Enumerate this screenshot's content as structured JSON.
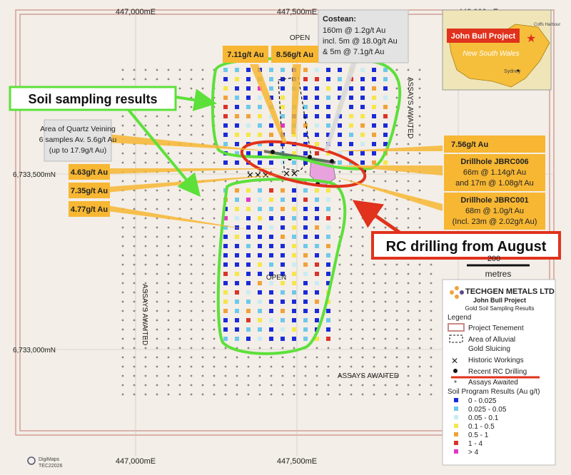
{
  "grid_labels": {
    "e1_top": "447,000mE",
    "e2_top": "447,500mE",
    "e3_top": "448,000mE",
    "e1_bottom": "447,000mE",
    "e2_bottom": "447,500mE",
    "n1": "6,733,500mN",
    "n2": "6,733,000mN"
  },
  "map_text": {
    "open_north": "OPEN",
    "open_south": "OPEN",
    "assays_awaited_east": "ASSAYS AWAITED",
    "assays_awaited_west": "ASSAYS AWAITED",
    "assays_awaited_south": "ASSAYS AWAITED"
  },
  "callouts": {
    "costean_title": "Costean:",
    "costean_line1": "160m @ 1.2g/t Au",
    "costean_line2": "incl. 5m @ 18.0g/t Au",
    "costean_line3": "& 5m @ 7.1g/t Au",
    "v711": "7.11g/t Au",
    "v856": "8.56g/t Au",
    "v756": "7.56g/t Au",
    "v463": "4.63g/t Au",
    "v735": "7.35g/t Au",
    "v477": "4.77g/t Au",
    "qv_title": "Area of Quartz Veining",
    "qv_line1": "6 samples Av. 5.6g/t Au",
    "qv_line2": "(up to 17.9g/t Au)",
    "dh6_title": "Drillhole JBRC006",
    "dh6_line1": "66m @ 1.14g/t Au",
    "dh6_line2": "and 17m @ 1.08g/t Au",
    "dh1_title": "Drillhole JBRC001",
    "dh1_line1": "68m @ 1.0g/t Au",
    "dh1_line2": "(Incl. 23m @ 2.02g/t Au)"
  },
  "annotations": {
    "soil": "Soil sampling results",
    "rc": "RC drilling from August"
  },
  "inset": {
    "project": "John Bull Project",
    "state": "New South Wales",
    "city1": "Sydney",
    "city2": "Coffs Harbour"
  },
  "scale": {
    "value": "200",
    "unit": "metres"
  },
  "legend": {
    "company": "TECHGEN METALS LTD",
    "project": "John Bull Project",
    "subtitle": "Gold Soil Sampling Results",
    "heading": "Legend",
    "tenement": "Project Tenement",
    "alluvial1": "Area of Alluvial",
    "alluvial2": "Gold Sluicing",
    "workings": "Historic Workings",
    "rc": "Recent RC Drilling",
    "assays": "Assays Awaited",
    "results_heading": "Soil Program Results (Au g/t)",
    "classes": [
      {
        "label": "0 - 0.025",
        "color": "#1a2bd8"
      },
      {
        "label": "0.025 - 0.05",
        "color": "#6ec9ea"
      },
      {
        "label": "0.05 - 0.1",
        "color": "#c9ecf4"
      },
      {
        "label": "0.1 - 0.5",
        "color": "#f5e64a"
      },
      {
        "label": "0.5 - 1",
        "color": "#f0a23a"
      },
      {
        "label": "1 - 4",
        "color": "#d9342b"
      },
      {
        "label": "> 4",
        "color": "#e236c8"
      }
    ]
  },
  "footer": {
    "brand": "DigiMaps",
    "code": "TEC22026"
  },
  "colors": {
    "callout_orange": "#f7b733",
    "green_outline": "#5de03a",
    "red_outline": "#e0321c",
    "grey_box": "#e3e3e3",
    "tenement_line": "#c98a86"
  }
}
